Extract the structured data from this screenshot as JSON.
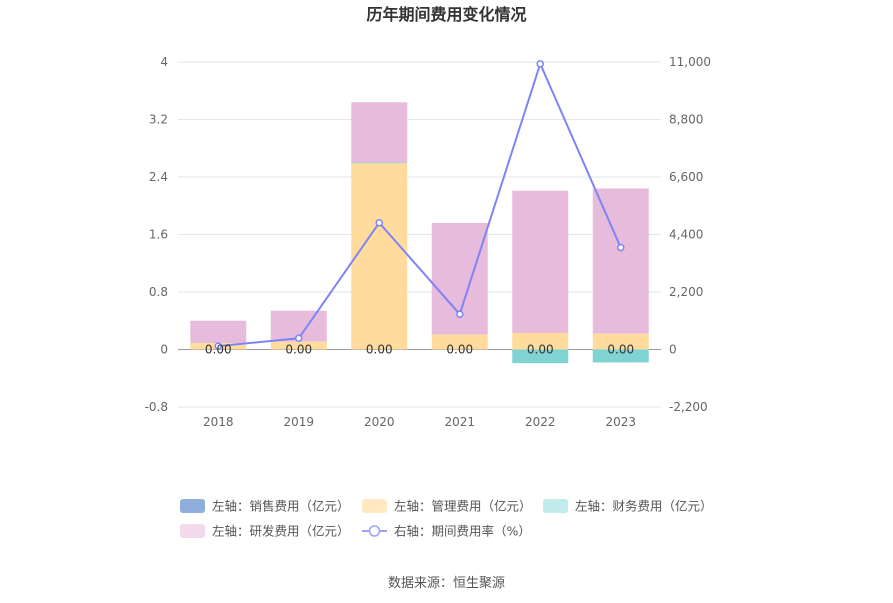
{
  "chart_data": {
    "type": "bar+line",
    "title": "历年期间费用变化情况",
    "categories": [
      "2018",
      "2019",
      "2020",
      "2021",
      "2022",
      "2023"
    ],
    "left_axis": {
      "ticks": [
        "4",
        "3.2",
        "2.4",
        "1.6",
        "0.8",
        "0",
        "-0.8"
      ],
      "ylim": [
        -0.8,
        4
      ]
    },
    "right_axis": {
      "ticks": [
        "11,000",
        "8,800",
        "6,600",
        "4,400",
        "2,200",
        "0",
        "-2,200"
      ],
      "ylim": [
        -2200,
        11000
      ]
    },
    "series": [
      {
        "name": "左轴：销售费用（亿元）",
        "axis": "left",
        "type": "bar",
        "color": "#8eaedc",
        "values": [
          0.0,
          0.0,
          0.0,
          0.0,
          0.0,
          0.0
        ],
        "labels": [
          "0.00",
          "0.00",
          "0.00",
          "0.00",
          "0.00",
          "0.00"
        ]
      },
      {
        "name": "左轴：管理费用（亿元）",
        "axis": "left",
        "type": "bar",
        "color": "#ffdb9e",
        "values": [
          0.09,
          0.11,
          2.59,
          0.21,
          0.23,
          0.22
        ]
      },
      {
        "name": "左轴：财务费用（亿元）",
        "axis": "left",
        "type": "bar",
        "color": "#7fd3d3",
        "values": [
          0.0,
          0.0,
          0.01,
          0.0,
          -0.19,
          -0.18
        ]
      },
      {
        "name": "左轴：研发费用（亿元）",
        "axis": "left",
        "type": "bar",
        "color": "#e7bbdc",
        "values": [
          0.31,
          0.43,
          0.84,
          1.55,
          1.98,
          2.02
        ]
      },
      {
        "name": "右轴：期间费用率（%）",
        "axis": "right",
        "type": "line",
        "color": "#7f84f5",
        "values": [
          130,
          430,
          4850,
          1350,
          10930,
          3900
        ]
      }
    ],
    "legend": [
      {
        "label": "左轴：销售费用（亿元）",
        "color": "#8eaedc",
        "kind": "rect"
      },
      {
        "label": "左轴：管理费用（亿元）",
        "color": "#ffe8c2",
        "kind": "rect"
      },
      {
        "label": "左轴：财务费用（亿元）",
        "color": "#c2ebeb",
        "kind": "rect"
      },
      {
        "label": "左轴：研发费用（亿元）",
        "color": "#f2d9ec",
        "kind": "rect"
      },
      {
        "label": "右轴：期间费用率（%）",
        "color": "#9fa3f7",
        "kind": "line"
      }
    ],
    "source": "数据来源：恒生聚源"
  }
}
